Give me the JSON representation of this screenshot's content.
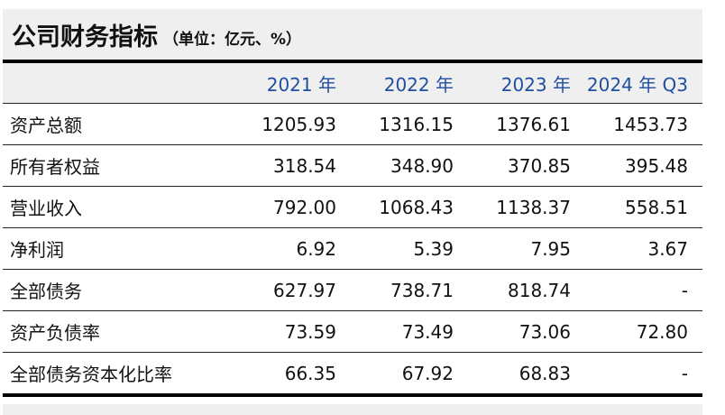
{
  "header": {
    "title": "公司财务指标",
    "unit": "（单位：亿元、%）"
  },
  "table": {
    "columns": [
      "",
      "2021 年",
      "2022 年",
      "2023 年",
      "2024 年 Q3"
    ],
    "rows": [
      [
        "资产总额",
        "1205.93",
        "1316.15",
        "1376.61",
        "1453.73"
      ],
      [
        "所有者权益",
        "318.54",
        "348.90",
        "370.85",
        "395.48"
      ],
      [
        "营业收入",
        "792.00",
        "1068.43",
        "1138.37",
        "558.51"
      ],
      [
        "净利润",
        "6.92",
        "5.39",
        "7.95",
        "3.67"
      ],
      [
        "全部债务",
        "627.97",
        "738.71",
        "818.74",
        "-"
      ],
      [
        "资产负债率",
        "73.59",
        "73.49",
        "73.06",
        "72.80"
      ],
      [
        "全部债务资本化比率",
        "66.35",
        "67.92",
        "68.83",
        "-"
      ]
    ]
  }
}
